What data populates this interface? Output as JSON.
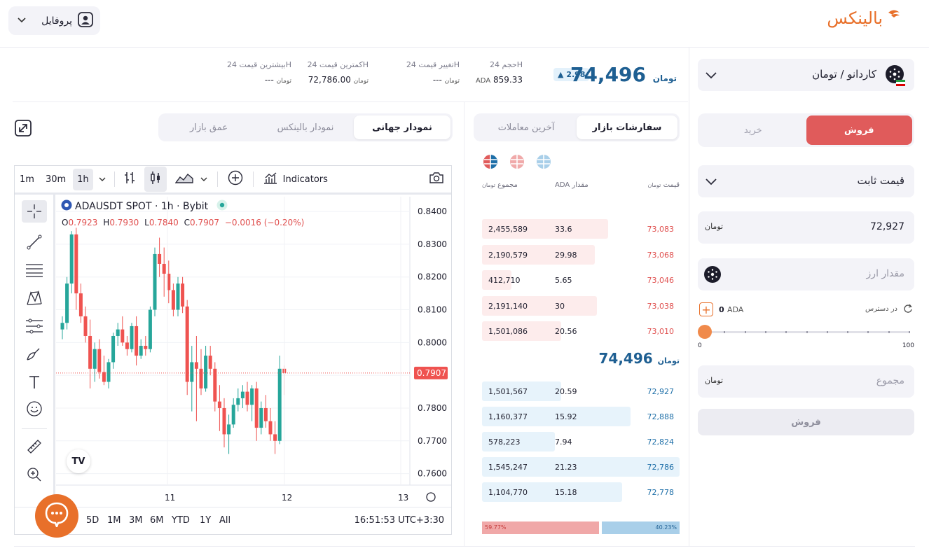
{
  "header": {
    "logo_text": "بالینکس",
    "profile_label": "پروفایل"
  },
  "stats": {
    "price": "74,496",
    "price_currency": "تومان",
    "change_badge": "2.98",
    "volume_label": "حجم 24H",
    "volume_value": "859.33",
    "volume_unit": "ADA",
    "change_label": "تغییر قیمت 24H",
    "change_value": "---",
    "low_label": "کمترین قیمت 24H",
    "low_value": "72,786.00",
    "high_label": "بیشترین قیمت 24H",
    "high_value": "---"
  },
  "chart_tabs": [
    "نمودار جهانی",
    "نمودار بالینکس",
    "عمق بازار"
  ],
  "tv": {
    "intervals": [
      "1m",
      "30m",
      "1h"
    ],
    "indicators_label": "Indicators",
    "symbol_title": "ADAUSDT SPOT · 1h · Bybit",
    "ohlc": {
      "o_label": "O",
      "o": "0.7923",
      "h_label": "H",
      "h": "0.7930",
      "l_label": "L",
      "l": "0.7840",
      "c_label": "C",
      "c": "0.7907",
      "chg": "−0.0016 (−0.20%)"
    },
    "price_ticks": [
      "0.8400",
      "0.8300",
      "0.8200",
      "0.8100",
      "0.8000",
      "0.7900",
      "0.7800",
      "0.7700",
      "0.7600"
    ],
    "last_price": "0.7907",
    "date_ticks": [
      "11",
      "12",
      "13"
    ],
    "ranges": [
      "5D",
      "1M",
      "3M",
      "6M",
      "YTD",
      "1Y",
      "All"
    ],
    "clock": "16:51:53 UTC+3:30",
    "watermark": "TV"
  },
  "chart_data": {
    "type": "candlestick",
    "title": "ADAUSDT SPOT · 1h · Bybit",
    "ylim": [
      0.7565,
      0.8445
    ],
    "x_ticks": [
      "11",
      "12",
      "13"
    ],
    "last_price": 0.7907,
    "candles": [
      [
        0.804,
        0.808,
        0.801,
        0.806
      ],
      [
        0.806,
        0.82,
        0.804,
        0.818
      ],
      [
        0.818,
        0.834,
        0.815,
        0.833
      ],
      [
        0.833,
        0.835,
        0.81,
        0.815
      ],
      [
        0.815,
        0.818,
        0.806,
        0.808
      ],
      [
        0.808,
        0.811,
        0.8,
        0.802
      ],
      [
        0.802,
        0.807,
        0.786,
        0.792
      ],
      [
        0.792,
        0.8,
        0.788,
        0.798
      ],
      [
        0.798,
        0.801,
        0.789,
        0.791
      ],
      [
        0.791,
        0.796,
        0.787,
        0.788
      ],
      [
        0.788,
        0.795,
        0.786,
        0.794
      ],
      [
        0.794,
        0.803,
        0.792,
        0.802
      ],
      [
        0.802,
        0.806,
        0.799,
        0.804
      ],
      [
        0.804,
        0.808,
        0.799,
        0.8
      ],
      [
        0.8,
        0.802,
        0.796,
        0.798
      ],
      [
        0.798,
        0.806,
        0.797,
        0.805
      ],
      [
        0.805,
        0.808,
        0.793,
        0.796
      ],
      [
        0.796,
        0.801,
        0.795,
        0.799
      ],
      [
        0.799,
        0.802,
        0.796,
        0.798
      ],
      [
        0.798,
        0.811,
        0.797,
        0.81
      ],
      [
        0.81,
        0.829,
        0.808,
        0.827
      ],
      [
        0.827,
        0.832,
        0.82,
        0.824
      ],
      [
        0.824,
        0.829,
        0.814,
        0.821
      ],
      [
        0.821,
        0.825,
        0.812,
        0.816
      ],
      [
        0.816,
        0.818,
        0.808,
        0.81
      ],
      [
        0.81,
        0.82,
        0.808,
        0.818
      ],
      [
        0.818,
        0.82,
        0.809,
        0.811
      ],
      [
        0.811,
        0.813,
        0.784,
        0.788
      ],
      [
        0.788,
        0.799,
        0.779,
        0.794
      ],
      [
        0.794,
        0.802,
        0.776,
        0.792
      ],
      [
        0.792,
        0.798,
        0.784,
        0.786
      ],
      [
        0.786,
        0.799,
        0.785,
        0.796
      ],
      [
        0.796,
        0.799,
        0.79,
        0.792
      ],
      [
        0.792,
        0.794,
        0.779,
        0.782
      ],
      [
        0.782,
        0.787,
        0.773,
        0.78
      ],
      [
        0.78,
        0.783,
        0.768,
        0.772
      ],
      [
        0.772,
        0.778,
        0.766,
        0.775
      ],
      [
        0.775,
        0.783,
        0.774,
        0.781
      ],
      [
        0.781,
        0.786,
        0.779,
        0.783
      ],
      [
        0.783,
        0.787,
        0.78,
        0.785
      ],
      [
        0.785,
        0.788,
        0.779,
        0.781
      ],
      [
        0.781,
        0.787,
        0.776,
        0.786
      ],
      [
        0.786,
        0.788,
        0.77,
        0.774
      ],
      [
        0.774,
        0.782,
        0.772,
        0.78
      ],
      [
        0.78,
        0.784,
        0.774,
        0.776
      ],
      [
        0.776,
        0.78,
        0.77,
        0.772
      ],
      [
        0.772,
        0.776,
        0.766,
        0.77
      ],
      [
        0.77,
        0.796,
        0.769,
        0.792
      ],
      [
        0.792,
        0.793,
        0.784,
        0.7907
      ]
    ]
  },
  "order_book": {
    "tabs": [
      "سفارشات بازار",
      "آخرین معاملات"
    ],
    "col_price": "قیمت",
    "col_amount": "مقدار",
    "col_amount_unit": "ADA",
    "col_total": "مجموع",
    "currency_glyph": "تومان",
    "asks": [
      {
        "price": "73,083",
        "amount": "33.6",
        "total": "2,455,589",
        "depth": 0.64
      },
      {
        "price": "73,068",
        "amount": "29.98",
        "total": "2,190,579",
        "depth": 0.57
      },
      {
        "price": "73,046",
        "amount": "5.65",
        "total": "412,710",
        "depth": 0.15
      },
      {
        "price": "73,038",
        "amount": "30",
        "total": "2,191,140",
        "depth": 0.58
      },
      {
        "price": "73,010",
        "amount": "20.56",
        "total": "1,501,086",
        "depth": 0.4
      }
    ],
    "mid_price": "74,496",
    "bids": [
      {
        "price": "72,927",
        "amount": "20.59",
        "total": "1,501,567",
        "depth": 0.4
      },
      {
        "price": "72,888",
        "amount": "15.92",
        "total": "1,160,377",
        "depth": 0.75
      },
      {
        "price": "72,824",
        "amount": "7.94",
        "total": "578,223",
        "depth": 0.37
      },
      {
        "price": "72,786",
        "amount": "21.23",
        "total": "1,545,247",
        "depth": 1.0
      },
      {
        "price": "72,778",
        "amount": "15.18",
        "total": "1,104,770",
        "depth": 0.71
      }
    ],
    "sell_ratio": "59.77%",
    "buy_ratio": "40.23%",
    "sell_ratio_value": 59.77,
    "buy_ratio_value": 40.23
  },
  "trade_panel": {
    "pair": "کاردانو / تومان",
    "buy_tab": "خرید",
    "sell_tab": "فروش",
    "order_type": "قیمت ثابت",
    "price_value": "72,927",
    "price_unit": "تومان",
    "amount_placeholder": "مقدار ارز",
    "available_label": "در دسترس",
    "available_value": "0",
    "available_unit": "ADA",
    "slider_min": "0",
    "slider_max": "100",
    "slider_value": 0,
    "total_placeholder": "مجموع",
    "submit_label": "فروش"
  },
  "colors": {
    "brand": "#e8702a",
    "up": "#26a69a",
    "down": "#ef5350",
    "ask_text": "#e0504f",
    "bid_text": "#1e6fa8",
    "ask_bg": "#fdecec",
    "bid_bg": "#e7f3fb",
    "sell_button": "#e05b5b"
  }
}
